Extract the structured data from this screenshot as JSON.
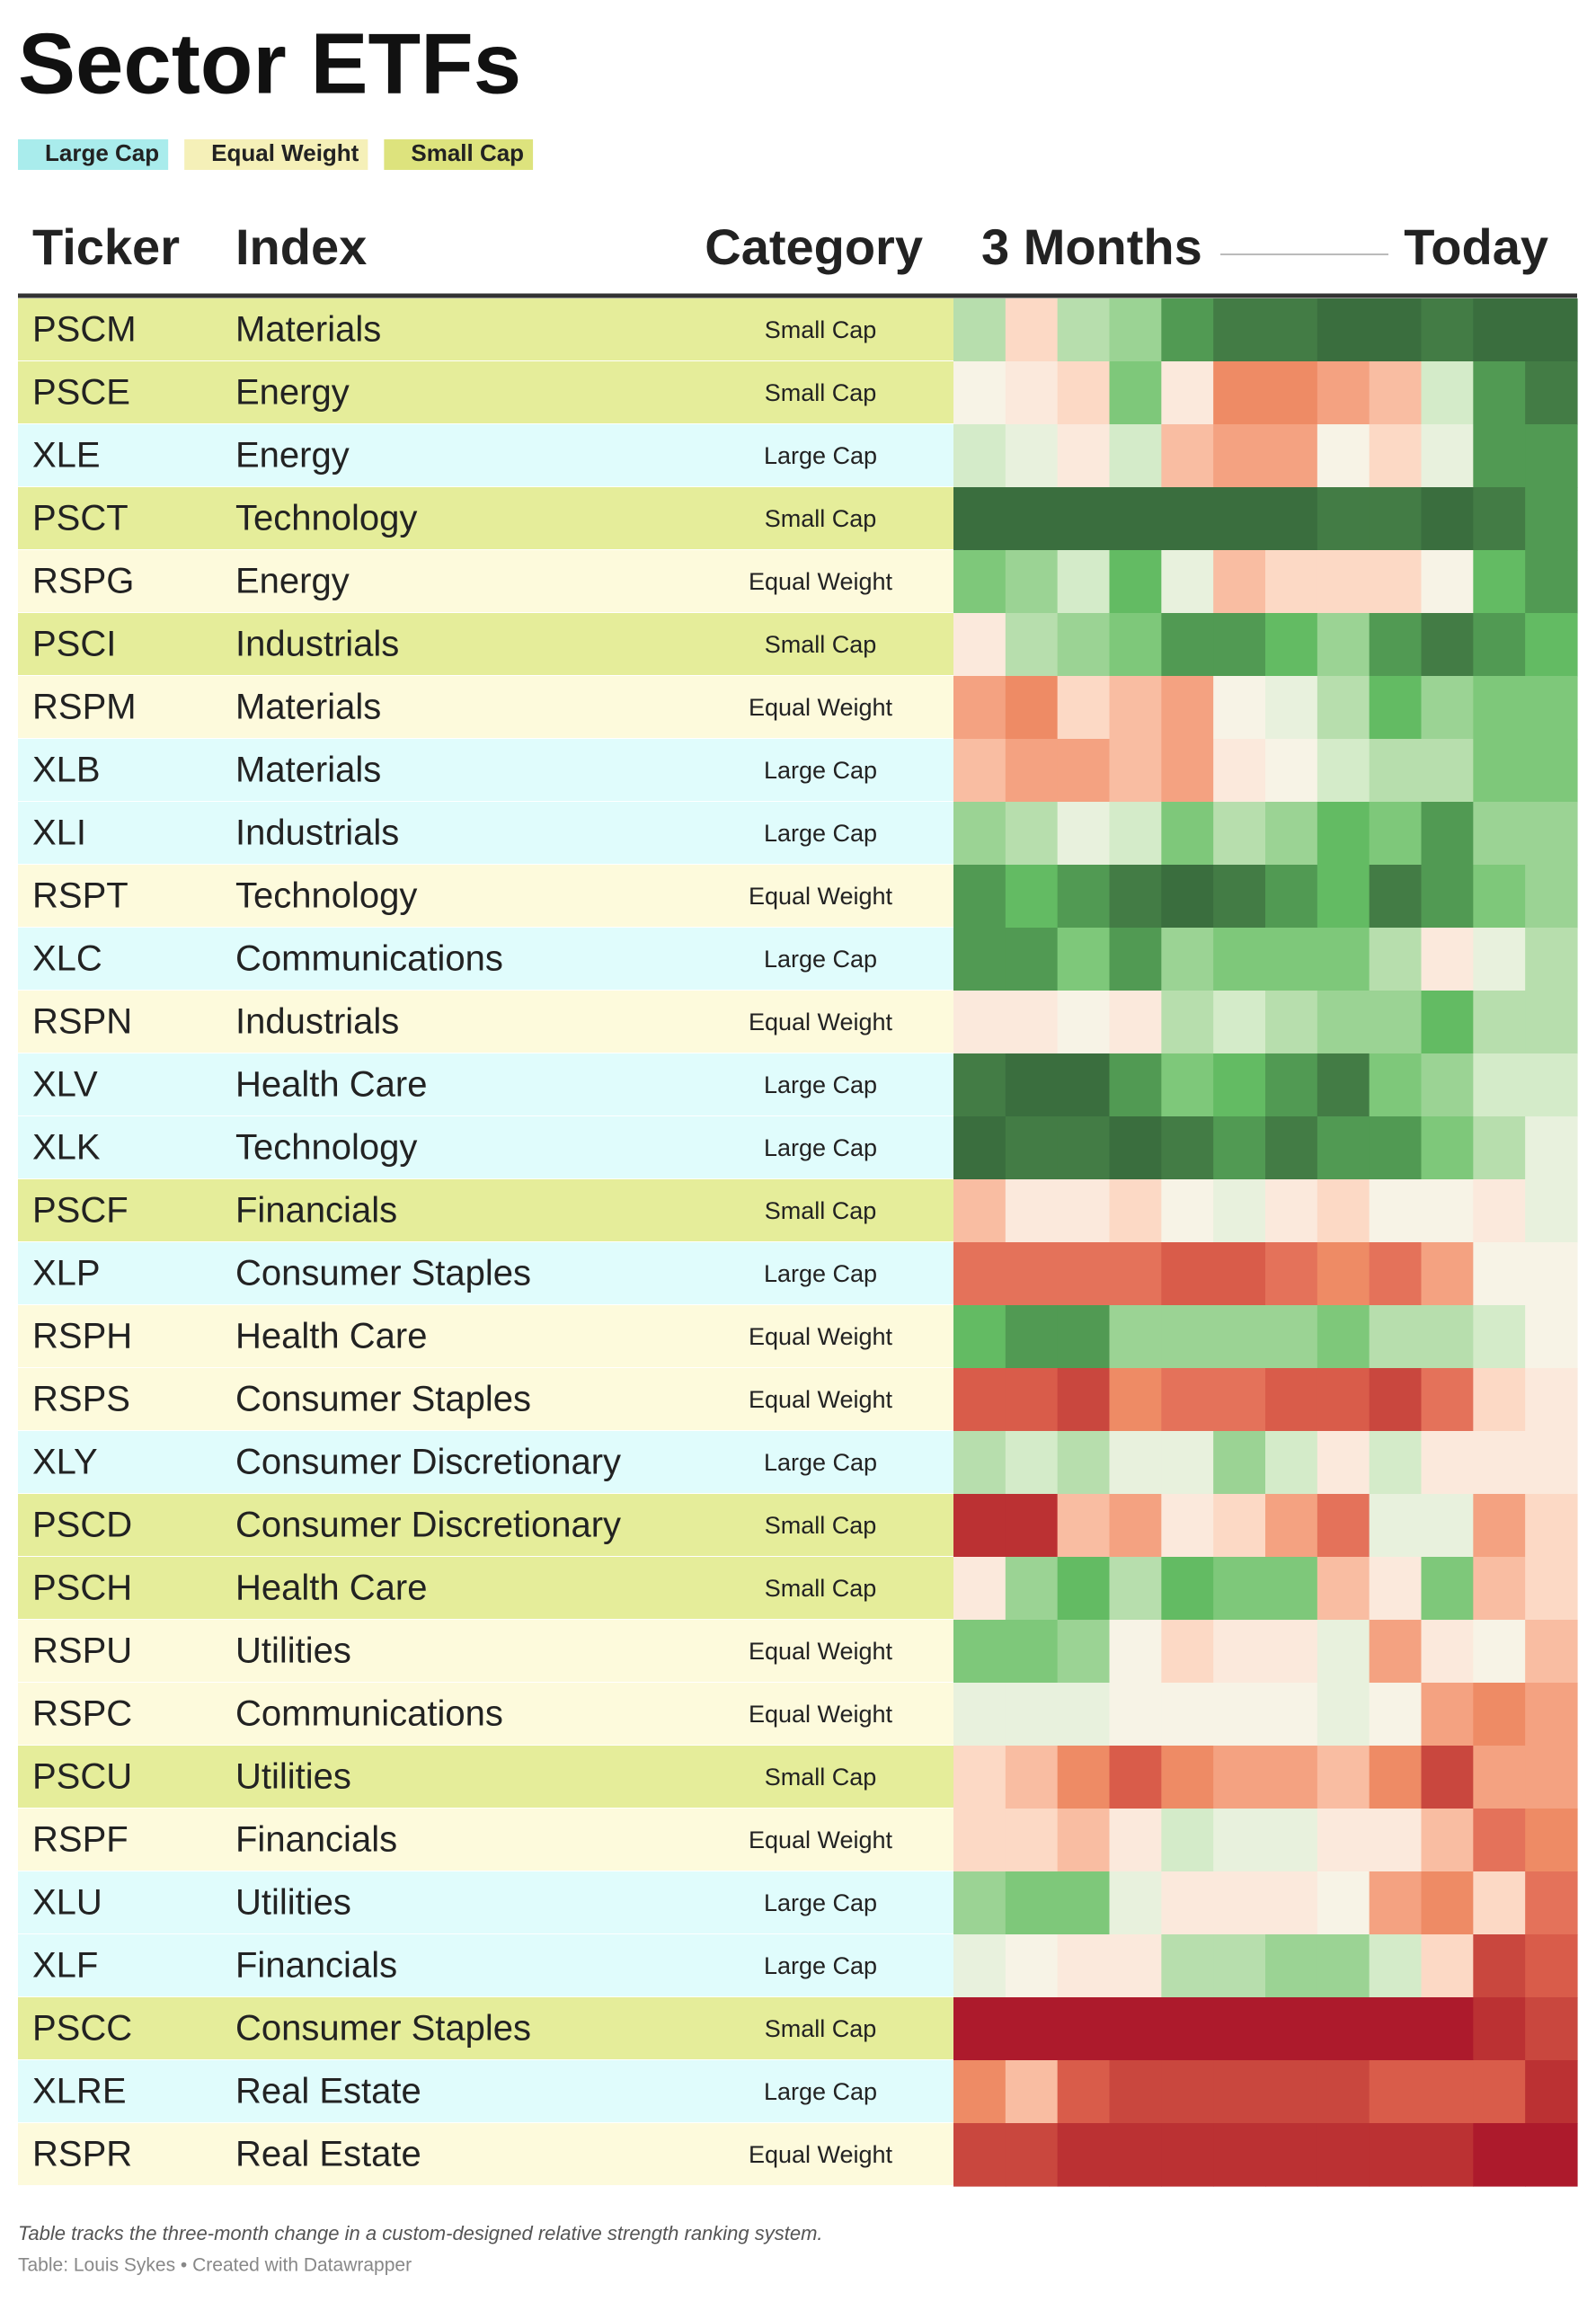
{
  "title": "Sector ETFs",
  "legend": [
    {
      "name": "Large Cap",
      "color": "#a9ecec",
      "row_color": "#e0fcfc"
    },
    {
      "name": "Equal Weight",
      "color": "#f5f0b8",
      "row_color": "#fdfadc"
    },
    {
      "name": "Small Cap",
      "color": "#dde37d",
      "row_color": "#e5ed9a"
    }
  ],
  "table": {
    "headers": {
      "ticker": "Ticker",
      "index": "Index",
      "category": "Category",
      "start": "3 Months",
      "end": "Today"
    },
    "palette": {
      "dg": "#3a6e3e",
      "g4": "#437c45",
      "g3": "#519a53",
      "g2": "#63bb63",
      "g1": "#7ec87a",
      "lg2": "#9bd394",
      "lg1": "#b7dead",
      "vlg": "#d4ebc9",
      "pale": "#e8f1dd",
      "cream": "#f7f3e6",
      "pk0": "#fbe9dc",
      "pk1": "#fcd9c5",
      "pk2": "#f9bda2",
      "o1": "#f4a281",
      "o2": "#ee8b65",
      "r1": "#e4725a",
      "r2": "#d95c4a",
      "r3": "#c9473e",
      "r4": "#bb3133",
      "r5": "#ad1a2c"
    },
    "rows": [
      {
        "ticker": "PSCM",
        "index": "Materials",
        "category": "Small Cap",
        "cells": [
          "lg1",
          "pk1",
          "lg1",
          "lg2",
          "g3",
          "g4",
          "g4",
          "dg",
          "dg",
          "g4",
          "dg",
          "dg"
        ]
      },
      {
        "ticker": "PSCE",
        "index": "Energy",
        "category": "Small Cap",
        "cells": [
          "cream",
          "pk0",
          "pk1",
          "g1",
          "pk0",
          "o2",
          "o2",
          "o1",
          "pk2",
          "vlg",
          "g3",
          "g4"
        ]
      },
      {
        "ticker": "XLE",
        "index": "Energy",
        "category": "Large Cap",
        "cells": [
          "vlg",
          "pale",
          "pk0",
          "vlg",
          "pk2",
          "o1",
          "o1",
          "cream",
          "pk1",
          "pale",
          "g3",
          "g3"
        ]
      },
      {
        "ticker": "PSCT",
        "index": "Technology",
        "category": "Small Cap",
        "cells": [
          "dg",
          "dg",
          "dg",
          "dg",
          "dg",
          "dg",
          "dg",
          "g4",
          "g4",
          "dg",
          "g4",
          "g3"
        ]
      },
      {
        "ticker": "RSPG",
        "index": "Energy",
        "category": "Equal Weight",
        "cells": [
          "g1",
          "lg2",
          "vlg",
          "g2",
          "pale",
          "pk2",
          "pk1",
          "pk1",
          "pk1",
          "cream",
          "g2",
          "g3"
        ]
      },
      {
        "ticker": "PSCI",
        "index": "Industrials",
        "category": "Small Cap",
        "cells": [
          "pk0",
          "lg1",
          "lg2",
          "g1",
          "g3",
          "g3",
          "g2",
          "lg2",
          "g3",
          "g4",
          "g3",
          "g2"
        ]
      },
      {
        "ticker": "RSPM",
        "index": "Materials",
        "category": "Equal Weight",
        "cells": [
          "o1",
          "o2",
          "pk1",
          "pk2",
          "o1",
          "cream",
          "pale",
          "lg1",
          "g2",
          "lg2",
          "g1",
          "g1"
        ]
      },
      {
        "ticker": "XLB",
        "index": "Materials",
        "category": "Large Cap",
        "cells": [
          "pk2",
          "o1",
          "o1",
          "pk2",
          "o1",
          "pk0",
          "cream",
          "vlg",
          "lg1",
          "lg1",
          "g1",
          "g1"
        ]
      },
      {
        "ticker": "XLI",
        "index": "Industrials",
        "category": "Large Cap",
        "cells": [
          "lg2",
          "lg1",
          "pale",
          "vlg",
          "g1",
          "lg1",
          "lg2",
          "g2",
          "g1",
          "g3",
          "lg2",
          "lg2"
        ]
      },
      {
        "ticker": "RSPT",
        "index": "Technology",
        "category": "Equal Weight",
        "cells": [
          "g3",
          "g2",
          "g3",
          "g4",
          "dg",
          "g4",
          "g3",
          "g2",
          "g4",
          "g3",
          "g1",
          "lg2"
        ]
      },
      {
        "ticker": "XLC",
        "index": "Communications",
        "category": "Large Cap",
        "cells": [
          "g3",
          "g3",
          "g1",
          "g3",
          "lg2",
          "g1",
          "g1",
          "g1",
          "lg1",
          "pk0",
          "pale",
          "lg1"
        ]
      },
      {
        "ticker": "RSPN",
        "index": "Industrials",
        "category": "Equal Weight",
        "cells": [
          "pk0",
          "pk0",
          "cream",
          "pk0",
          "lg1",
          "vlg",
          "lg1",
          "lg2",
          "lg2",
          "g2",
          "lg1",
          "lg1"
        ]
      },
      {
        "ticker": "XLV",
        "index": "Health Care",
        "category": "Large Cap",
        "cells": [
          "g4",
          "dg",
          "dg",
          "g3",
          "g1",
          "g2",
          "g3",
          "g4",
          "g1",
          "lg2",
          "vlg",
          "vlg"
        ]
      },
      {
        "ticker": "XLK",
        "index": "Technology",
        "category": "Large Cap",
        "cells": [
          "dg",
          "g4",
          "g4",
          "dg",
          "g4",
          "g3",
          "g4",
          "g3",
          "g3",
          "g1",
          "lg1",
          "pale"
        ]
      },
      {
        "ticker": "PSCF",
        "index": "Financials",
        "category": "Small Cap",
        "cells": [
          "pk2",
          "pk0",
          "pk0",
          "pk1",
          "cream",
          "pale",
          "pk0",
          "pk1",
          "cream",
          "cream",
          "pk0",
          "pale"
        ]
      },
      {
        "ticker": "XLP",
        "index": "Consumer Staples",
        "category": "Large Cap",
        "cells": [
          "r1",
          "r1",
          "r1",
          "r1",
          "r2",
          "r2",
          "r1",
          "o2",
          "r1",
          "o1",
          "cream",
          "cream"
        ]
      },
      {
        "ticker": "RSPH",
        "index": "Health Care",
        "category": "Equal Weight",
        "cells": [
          "g2",
          "g3",
          "g3",
          "lg2",
          "lg2",
          "lg2",
          "lg2",
          "g1",
          "lg1",
          "lg1",
          "vlg",
          "cream"
        ]
      },
      {
        "ticker": "RSPS",
        "index": "Consumer Staples",
        "category": "Equal Weight",
        "cells": [
          "r2",
          "r2",
          "r3",
          "o2",
          "r1",
          "r1",
          "r2",
          "r2",
          "r3",
          "r1",
          "pk1",
          "pk0"
        ]
      },
      {
        "ticker": "XLY",
        "index": "Consumer Discretionary",
        "category": "Large Cap",
        "cells": [
          "lg1",
          "vlg",
          "lg1",
          "pale",
          "pale",
          "lg2",
          "vlg",
          "pk0",
          "vlg",
          "pk0",
          "pk0",
          "pk0"
        ]
      },
      {
        "ticker": "PSCD",
        "index": "Consumer Discretionary",
        "category": "Small Cap",
        "cells": [
          "r4",
          "r4",
          "pk2",
          "o1",
          "pk0",
          "pk1",
          "o1",
          "r1",
          "pale",
          "pale",
          "o1",
          "pk1"
        ]
      },
      {
        "ticker": "PSCH",
        "index": "Health Care",
        "category": "Small Cap",
        "cells": [
          "pk0",
          "lg2",
          "g2",
          "lg1",
          "g2",
          "g1",
          "g1",
          "pk2",
          "pk0",
          "g1",
          "pk2",
          "pk1"
        ]
      },
      {
        "ticker": "RSPU",
        "index": "Utilities",
        "category": "Equal Weight",
        "cells": [
          "g1",
          "g1",
          "lg2",
          "cream",
          "pk1",
          "pk0",
          "pk0",
          "pale",
          "o1",
          "pk0",
          "cream",
          "pk2"
        ]
      },
      {
        "ticker": "RSPC",
        "index": "Communications",
        "category": "Equal Weight",
        "cells": [
          "pale",
          "pale",
          "pale",
          "cream",
          "cream",
          "cream",
          "cream",
          "pale",
          "cream",
          "o1",
          "o2",
          "o1"
        ]
      },
      {
        "ticker": "PSCU",
        "index": "Utilities",
        "category": "Small Cap",
        "cells": [
          "pk1",
          "pk2",
          "o2",
          "r2",
          "o2",
          "o1",
          "o1",
          "pk2",
          "o2",
          "r3",
          "o1",
          "o1"
        ]
      },
      {
        "ticker": "RSPF",
        "index": "Financials",
        "category": "Equal Weight",
        "cells": [
          "pk1",
          "pk1",
          "pk2",
          "pk0",
          "vlg",
          "pale",
          "pale",
          "pk0",
          "pk0",
          "pk2",
          "r1",
          "o2"
        ]
      },
      {
        "ticker": "XLU",
        "index": "Utilities",
        "category": "Large Cap",
        "cells": [
          "lg2",
          "g1",
          "g1",
          "pale",
          "pk0",
          "pk0",
          "pk0",
          "cream",
          "o1",
          "o2",
          "pk1",
          "r1"
        ]
      },
      {
        "ticker": "XLF",
        "index": "Financials",
        "category": "Large Cap",
        "cells": [
          "pale",
          "cream",
          "pk0",
          "pk0",
          "lg1",
          "lg1",
          "lg2",
          "lg2",
          "vlg",
          "pk1",
          "r3",
          "r2"
        ]
      },
      {
        "ticker": "PSCC",
        "index": "Consumer Staples",
        "category": "Small Cap",
        "cells": [
          "r5",
          "r5",
          "r5",
          "r5",
          "r5",
          "r5",
          "r5",
          "r5",
          "r5",
          "r5",
          "r4",
          "r3"
        ]
      },
      {
        "ticker": "XLRE",
        "index": "Real Estate",
        "category": "Large Cap",
        "cells": [
          "o2",
          "pk2",
          "r2",
          "r3",
          "r3",
          "r3",
          "r3",
          "r3",
          "r2",
          "r2",
          "r2",
          "r4"
        ]
      },
      {
        "ticker": "RSPR",
        "index": "Real Estate",
        "category": "Equal Weight",
        "cells": [
          "r3",
          "r3",
          "r4",
          "r4",
          "r4",
          "r4",
          "r4",
          "r4",
          "r4",
          "r4",
          "r5",
          "r5"
        ]
      }
    ]
  },
  "notes": "Table tracks the three-month change in a custom-designed relative strength ranking system.",
  "credit": "Table: Louis Sykes • Created with Datawrapper"
}
